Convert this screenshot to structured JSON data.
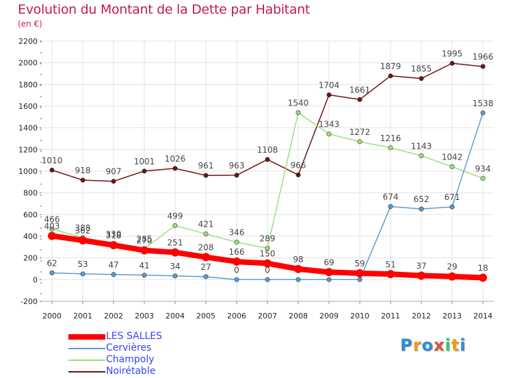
{
  "header": {
    "title": "Evolution du Montant de la Dette par Habitant",
    "subtitle": "(en €)"
  },
  "chart_data": {
    "type": "line",
    "title": "Evolution du Montant de la Dette par Habitant",
    "subtitle": "(en €)",
    "xlabel": "",
    "ylabel": "",
    "x": [
      2000,
      2001,
      2002,
      2003,
      2004,
      2005,
      2006,
      2007,
      2008,
      2009,
      2010,
      2011,
      2012,
      2013,
      2014
    ],
    "ylim": [
      -200,
      2200
    ],
    "yticks": [
      -200,
      0,
      200,
      400,
      600,
      800,
      1000,
      1200,
      1400,
      1600,
      1800,
      2000,
      2200
    ],
    "grid": true,
    "legend_position": "bottom-left",
    "series": [
      {
        "name": "LES SALLES",
        "color": "#ff0000",
        "values": [
          403,
          362,
          318,
          270,
          251,
          208,
          166,
          150,
          98,
          69,
          59,
          51,
          37,
          29,
          18
        ],
        "labels": [
          "403",
          "362",
          "318",
          "270",
          "251",
          "208",
          "166",
          "150",
          "98",
          "69",
          "59",
          "51",
          "37",
          "29",
          "18"
        ]
      },
      {
        "name": "Cervières",
        "color": "#5b9bd5",
        "values": [
          62,
          53,
          47,
          41,
          34,
          27,
          0,
          0,
          0,
          0,
          0,
          674,
          652,
          671,
          1538
        ],
        "labels": [
          "62",
          "53",
          "47",
          "41",
          "34",
          "27",
          "0",
          "0",
          "",
          "",
          "",
          "674",
          "652",
          "671",
          "1538"
        ]
      },
      {
        "name": "Champoly",
        "color": "#99e07a",
        "values": [
          466,
          388,
          330,
          285,
          499,
          421,
          346,
          289,
          1540,
          1343,
          1272,
          1216,
          1143,
          1042,
          934
        ],
        "labels": [
          "466",
          "388",
          "330",
          "285",
          "499",
          "421",
          "346",
          "289",
          "1540",
          "1343",
          "1272",
          "1216",
          "1143",
          "1042",
          "934"
        ]
      },
      {
        "name": "Noirétable",
        "color": "#6b1414",
        "values": [
          1010,
          918,
          907,
          1001,
          1026,
          961,
          963,
          1108,
          966,
          1704,
          1661,
          1879,
          1855,
          1995,
          1966
        ],
        "labels": [
          "1010",
          "918",
          "907",
          "1001",
          "1026",
          "961",
          "963",
          "1108",
          "966",
          "1704",
          "1661",
          "1879",
          "1855",
          "1995",
          "1966"
        ]
      }
    ]
  },
  "legend": [
    {
      "name": "LES SALLES",
      "color": "#ff0000"
    },
    {
      "name": "Cervières",
      "color": "#5b9bd5"
    },
    {
      "name": "Champoly",
      "color": "#99e07a"
    },
    {
      "name": "Noirétable",
      "color": "#6b1414"
    }
  ],
  "logo": {
    "text": "Proxiti",
    "letters": [
      "P",
      "r",
      "o",
      "x",
      "i",
      "t",
      "i"
    ],
    "colors": [
      "#2a8fd6",
      "#f39c12",
      "#2a8fd6",
      "#e74c3c",
      "#2ecc71",
      "#f39c12",
      "#2a8fd6"
    ]
  }
}
